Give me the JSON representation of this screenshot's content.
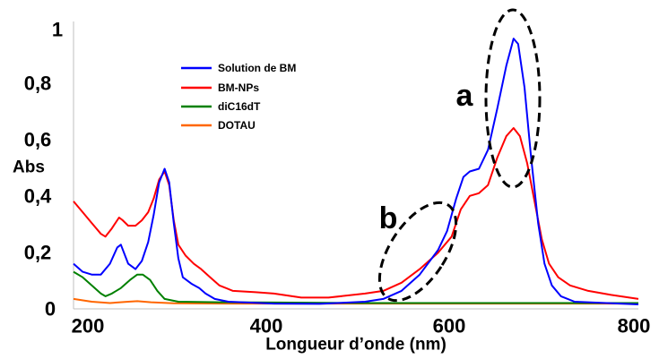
{
  "chart_data": {
    "type": "line",
    "xlabel": "Longueur d’onde (nm)",
    "ylabel": "Abs",
    "xlim": [
      180,
      800
    ],
    "ylim": [
      0,
      1
    ],
    "x_ticks": [
      "200",
      "400",
      "600",
      "800"
    ],
    "y_ticks": [
      "0",
      "0,2",
      "0,4",
      "0,6",
      "0,8",
      "1"
    ],
    "grid": false,
    "legend_position": "upper-left of plot area",
    "series": [
      {
        "name": "Solution de BM",
        "color": "#0000ff",
        "points": [
          [
            180,
            0.15
          ],
          [
            190,
            0.12
          ],
          [
            200,
            0.11
          ],
          [
            210,
            0.11
          ],
          [
            220,
            0.15
          ],
          [
            228,
            0.21
          ],
          [
            232,
            0.22
          ],
          [
            240,
            0.15
          ],
          [
            248,
            0.13
          ],
          [
            255,
            0.16
          ],
          [
            262,
            0.23
          ],
          [
            268,
            0.33
          ],
          [
            274,
            0.45
          ],
          [
            280,
            0.5
          ],
          [
            285,
            0.45
          ],
          [
            290,
            0.3
          ],
          [
            295,
            0.17
          ],
          [
            300,
            0.1
          ],
          [
            310,
            0.075
          ],
          [
            318,
            0.06
          ],
          [
            325,
            0.04
          ],
          [
            335,
            0.02
          ],
          [
            350,
            0.01
          ],
          [
            400,
            0.003
          ],
          [
            450,
            0.002
          ],
          [
            500,
            0.01
          ],
          [
            520,
            0.02
          ],
          [
            540,
            0.05
          ],
          [
            560,
            0.11
          ],
          [
            580,
            0.2
          ],
          [
            590,
            0.27
          ],
          [
            600,
            0.39
          ],
          [
            608,
            0.47
          ],
          [
            615,
            0.49
          ],
          [
            625,
            0.5
          ],
          [
            635,
            0.57
          ],
          [
            645,
            0.72
          ],
          [
            655,
            0.88
          ],
          [
            663,
            0.98
          ],
          [
            668,
            0.96
          ],
          [
            675,
            0.8
          ],
          [
            682,
            0.55
          ],
          [
            690,
            0.3
          ],
          [
            697,
            0.15
          ],
          [
            705,
            0.07
          ],
          [
            715,
            0.03
          ],
          [
            730,
            0.01
          ],
          [
            800,
            0.0
          ]
        ]
      },
      {
        "name": "BM-NPs",
        "color": "#ff0000",
        "points": [
          [
            180,
            0.38
          ],
          [
            190,
            0.34
          ],
          [
            200,
            0.3
          ],
          [
            210,
            0.26
          ],
          [
            215,
            0.25
          ],
          [
            222,
            0.28
          ],
          [
            230,
            0.32
          ],
          [
            234,
            0.31
          ],
          [
            240,
            0.29
          ],
          [
            248,
            0.29
          ],
          [
            255,
            0.31
          ],
          [
            262,
            0.34
          ],
          [
            268,
            0.39
          ],
          [
            274,
            0.46
          ],
          [
            280,
            0.49
          ],
          [
            285,
            0.44
          ],
          [
            290,
            0.31
          ],
          [
            295,
            0.22
          ],
          [
            303,
            0.18
          ],
          [
            312,
            0.15
          ],
          [
            320,
            0.13
          ],
          [
            330,
            0.1
          ],
          [
            340,
            0.07
          ],
          [
            355,
            0.05
          ],
          [
            380,
            0.045
          ],
          [
            400,
            0.04
          ],
          [
            430,
            0.025
          ],
          [
            460,
            0.025
          ],
          [
            500,
            0.04
          ],
          [
            520,
            0.05
          ],
          [
            540,
            0.08
          ],
          [
            560,
            0.13
          ],
          [
            580,
            0.19
          ],
          [
            595,
            0.25
          ],
          [
            605,
            0.35
          ],
          [
            615,
            0.4
          ],
          [
            625,
            0.41
          ],
          [
            635,
            0.44
          ],
          [
            645,
            0.54
          ],
          [
            655,
            0.62
          ],
          [
            663,
            0.65
          ],
          [
            670,
            0.62
          ],
          [
            678,
            0.52
          ],
          [
            686,
            0.38
          ],
          [
            694,
            0.24
          ],
          [
            702,
            0.15
          ],
          [
            712,
            0.1
          ],
          [
            725,
            0.07
          ],
          [
            745,
            0.05
          ],
          [
            770,
            0.035
          ],
          [
            800,
            0.02
          ]
        ]
      },
      {
        "name": "diC16dT",
        "color": "#008000",
        "points": [
          [
            180,
            0.12
          ],
          [
            190,
            0.1
          ],
          [
            200,
            0.07
          ],
          [
            210,
            0.04
          ],
          [
            215,
            0.03
          ],
          [
            222,
            0.04
          ],
          [
            232,
            0.06
          ],
          [
            242,
            0.09
          ],
          [
            250,
            0.11
          ],
          [
            256,
            0.11
          ],
          [
            264,
            0.09
          ],
          [
            272,
            0.05
          ],
          [
            280,
            0.02
          ],
          [
            295,
            0.01
          ],
          [
            340,
            0.008
          ],
          [
            400,
            0.007
          ],
          [
            500,
            0.005
          ],
          [
            600,
            0.005
          ],
          [
            700,
            0.005
          ],
          [
            800,
            0.005
          ]
        ]
      },
      {
        "name": "DOTAU",
        "color": "#ff6600",
        "points": [
          [
            180,
            0.02
          ],
          [
            200,
            0.01
          ],
          [
            220,
            0.005
          ],
          [
            240,
            0.01
          ],
          [
            250,
            0.012
          ],
          [
            265,
            0.008
          ],
          [
            290,
            0.004
          ],
          [
            350,
            0.003
          ],
          [
            500,
            0.003
          ],
          [
            800,
            0.003
          ]
        ]
      }
    ],
    "annotations": [
      {
        "label": "a",
        "region": "ellipse around the main peak near 665 nm"
      },
      {
        "label": "b",
        "region": "ellipse around the shoulder near 560–600 nm"
      }
    ]
  }
}
